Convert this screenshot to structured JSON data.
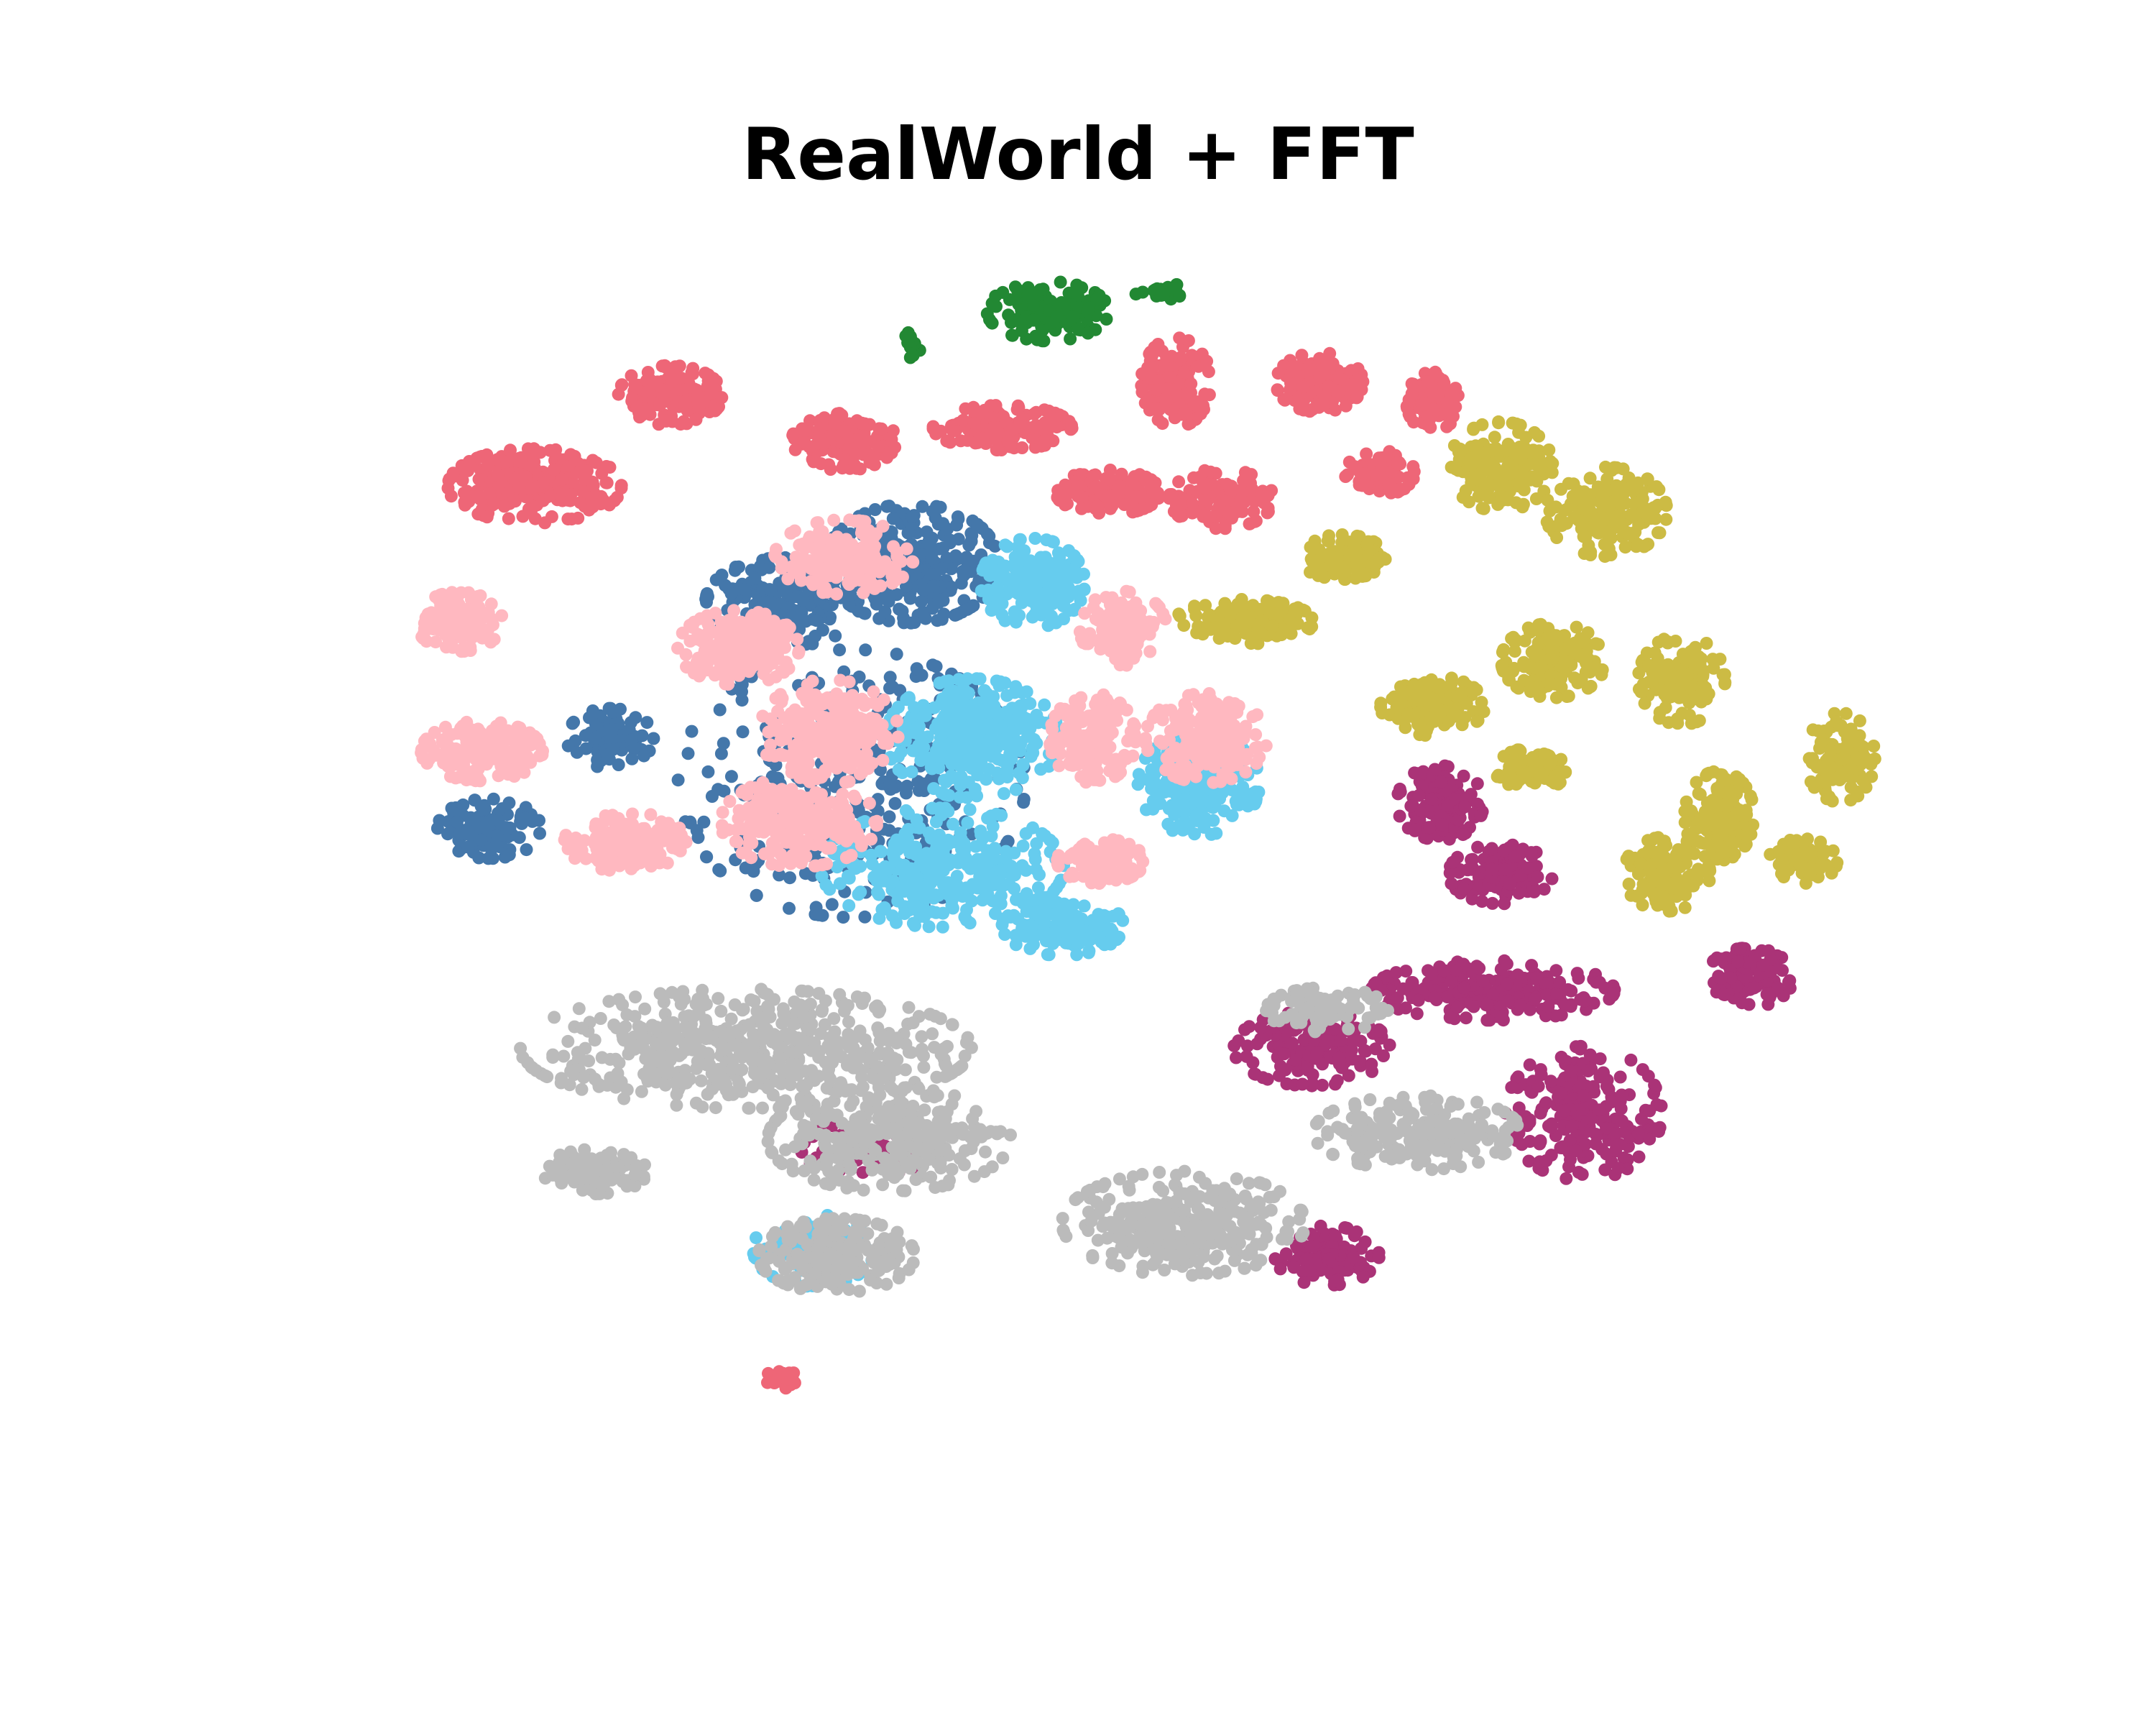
{
  "chart_data": {
    "type": "scatter",
    "title": "RealWorld + FFT",
    "xlabel": "",
    "ylabel": "",
    "axes_visible": false,
    "grid": false,
    "legend": "none",
    "xlim": [
      -100,
      100
    ],
    "ylim": [
      -100,
      100
    ],
    "series": [
      {
        "color": "#ee6677",
        "clusters": [
          {
            "cx": -72,
            "cy": 56,
            "rx": 10,
            "ry": 5,
            "n": 260
          },
          {
            "cx": -54,
            "cy": 70,
            "rx": 6,
            "ry": 4,
            "n": 150
          },
          {
            "cx": -31,
            "cy": 63,
            "rx": 6,
            "ry": 4,
            "n": 150
          },
          {
            "cx": -10,
            "cy": 65,
            "rx": 8,
            "ry": 3,
            "n": 150
          },
          {
            "cx": 4,
            "cy": 55,
            "rx": 6,
            "ry": 3,
            "n": 130
          },
          {
            "cx": 13,
            "cy": 72,
            "rx": 4,
            "ry": 6,
            "n": 150
          },
          {
            "cx": 19,
            "cy": 54,
            "rx": 6,
            "ry": 4,
            "n": 150
          },
          {
            "cx": 32,
            "cy": 72,
            "rx": 5,
            "ry": 4,
            "n": 150
          },
          {
            "cx": 40,
            "cy": 58,
            "rx": 4,
            "ry": 3,
            "n": 90
          },
          {
            "cx": 47,
            "cy": 69,
            "rx": 3,
            "ry": 4,
            "n": 110
          },
          {
            "cx": -39,
            "cy": -82,
            "rx": 2,
            "ry": 1.5,
            "n": 30
          }
        ]
      },
      {
        "color": "#228833",
        "clusters": [
          {
            "cx": -4,
            "cy": 83,
            "rx": 7,
            "ry": 4,
            "n": 150
          },
          {
            "cx": 11,
            "cy": 86,
            "rx": 3,
            "ry": 1.2,
            "n": 30
          },
          {
            "cx": -22,
            "cy": 78,
            "rx": 1,
            "ry": 2,
            "n": 15
          }
        ]
      },
      {
        "color": "#4477aa",
        "clusters": [
          {
            "cx": -22,
            "cy": 44,
            "rx": 10,
            "ry": 8,
            "n": 320
          },
          {
            "cx": -39,
            "cy": 38,
            "rx": 9,
            "ry": 6,
            "n": 200
          },
          {
            "cx": -62,
            "cy": 17,
            "rx": 5,
            "ry": 4,
            "n": 80
          },
          {
            "cx": -78,
            "cy": 3,
            "rx": 6,
            "ry": 4,
            "n": 110
          },
          {
            "cx": -30,
            "cy": 10,
            "rx": 20,
            "ry": 18,
            "n": 320
          }
        ]
      },
      {
        "color": "#66ccee",
        "clusters": [
          {
            "cx": -6,
            "cy": 41,
            "rx": 6,
            "ry": 6,
            "n": 220
          },
          {
            "cx": -14,
            "cy": 17,
            "rx": 10,
            "ry": 8,
            "n": 320
          },
          {
            "cx": -18,
            "cy": -3,
            "rx": 14,
            "ry": 8,
            "n": 320
          },
          {
            "cx": 16,
            "cy": 10,
            "rx": 7,
            "ry": 7,
            "n": 220
          },
          {
            "cx": -2,
            "cy": -12,
            "rx": 7,
            "ry": 4,
            "n": 160
          },
          {
            "cx": -35,
            "cy": -62,
            "rx": 7,
            "ry": 5,
            "n": 90
          }
        ]
      },
      {
        "color": "#ffb8c0",
        "clusters": [
          {
            "cx": -82,
            "cy": 35,
            "rx": 5,
            "ry": 4,
            "n": 140
          },
          {
            "cx": -45,
            "cy": 31,
            "rx": 7,
            "ry": 5,
            "n": 200
          },
          {
            "cx": -31,
            "cy": 45,
            "rx": 8,
            "ry": 5,
            "n": 200
          },
          {
            "cx": -79,
            "cy": 15,
            "rx": 7,
            "ry": 4,
            "n": 170
          },
          {
            "cx": -33,
            "cy": 18,
            "rx": 8,
            "ry": 7,
            "n": 240
          },
          {
            "cx": -37,
            "cy": 4,
            "rx": 9,
            "ry": 6,
            "n": 240
          },
          {
            "cx": -60,
            "cy": 1,
            "rx": 7,
            "ry": 4,
            "n": 160
          },
          {
            "cx": 2,
            "cy": 17,
            "rx": 5,
            "ry": 6,
            "n": 170
          },
          {
            "cx": 17,
            "cy": 17,
            "rx": 7,
            "ry": 6,
            "n": 190
          },
          {
            "cx": 6,
            "cy": 34,
            "rx": 5,
            "ry": 5,
            "n": 130
          },
          {
            "cx": 3,
            "cy": -2,
            "rx": 5,
            "ry": 3,
            "n": 110
          }
        ]
      },
      {
        "color": "#ccbb44",
        "clusters": [
          {
            "cx": 22,
            "cy": 35,
            "rx": 8,
            "ry": 3,
            "n": 150
          },
          {
            "cx": 35,
            "cy": 45,
            "rx": 5,
            "ry": 3,
            "n": 110
          },
          {
            "cx": 56,
            "cy": 59,
            "rx": 6,
            "ry": 6,
            "n": 170
          },
          {
            "cx": 70,
            "cy": 52,
            "rx": 7,
            "ry": 6,
            "n": 170
          },
          {
            "cx": 47,
            "cy": 22,
            "rx": 6,
            "ry": 4,
            "n": 130
          },
          {
            "cx": 63,
            "cy": 29,
            "rx": 6,
            "ry": 5,
            "n": 150
          },
          {
            "cx": 80,
            "cy": 26,
            "rx": 5,
            "ry": 6,
            "n": 130
          },
          {
            "cx": 60,
            "cy": 12,
            "rx": 4,
            "ry": 3,
            "n": 90
          },
          {
            "cx": 85,
            "cy": 5,
            "rx": 4,
            "ry": 6,
            "n": 130
          },
          {
            "cx": 101,
            "cy": 14,
            "rx": 4,
            "ry": 6,
            "n": 110
          },
          {
            "cx": 78,
            "cy": -4,
            "rx": 5,
            "ry": 5,
            "n": 110
          },
          {
            "cx": 96,
            "cy": -2,
            "rx": 4,
            "ry": 3,
            "n": 90
          }
        ]
      },
      {
        "color": "#aa3377",
        "clusters": [
          {
            "cx": 48,
            "cy": 7,
            "rx": 5,
            "ry": 5,
            "n": 130
          },
          {
            "cx": 56,
            "cy": -4,
            "rx": 6,
            "ry": 4,
            "n": 130
          },
          {
            "cx": 55,
            "cy": -22,
            "rx": 14,
            "ry": 4,
            "n": 220
          },
          {
            "cx": 31,
            "cy": -31,
            "rx": 9,
            "ry": 5,
            "n": 150
          },
          {
            "cx": 67,
            "cy": -41,
            "rx": 9,
            "ry": 9,
            "n": 220
          },
          {
            "cx": 89,
            "cy": -20,
            "rx": 5,
            "ry": 4,
            "n": 110
          },
          {
            "cx": 33,
            "cy": -63,
            "rx": 6,
            "ry": 4,
            "n": 110
          },
          {
            "cx": -28,
            "cy": -46,
            "rx": 8,
            "ry": 4,
            "n": 90
          }
        ]
      },
      {
        "color": "#bbbbbb",
        "clusters": [
          {
            "cx": -44,
            "cy": -31,
            "rx": 26,
            "ry": 8,
            "n": 560
          },
          {
            "cx": -25,
            "cy": -45,
            "rx": 14,
            "ry": 7,
            "n": 300
          },
          {
            "cx": -32,
            "cy": -63,
            "rx": 9,
            "ry": 5,
            "n": 200
          },
          {
            "cx": -64,
            "cy": -50,
            "rx": 6,
            "ry": 3,
            "n": 110
          },
          {
            "cx": 14,
            "cy": -58,
            "rx": 14,
            "ry": 7,
            "n": 320
          },
          {
            "cx": 45,
            "cy": -44,
            "rx": 12,
            "ry": 5,
            "n": 220
          },
          {
            "cx": 33,
            "cy": -25,
            "rx": 7,
            "ry": 3,
            "n": 90
          }
        ]
      }
    ]
  }
}
